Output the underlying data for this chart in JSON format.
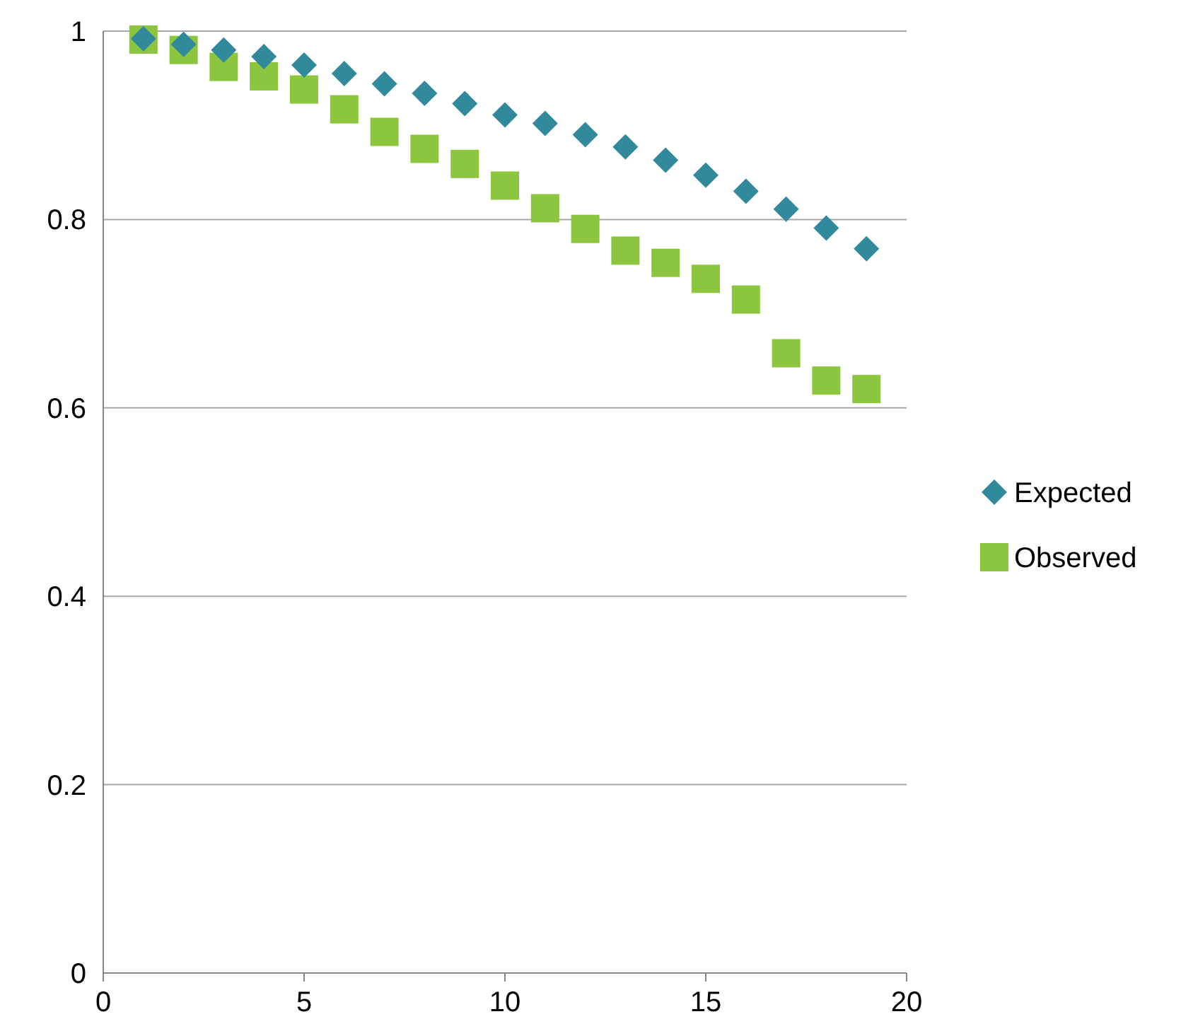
{
  "chart_data": {
    "type": "scatter",
    "x": [
      1,
      2,
      3,
      4,
      5,
      6,
      7,
      8,
      9,
      10,
      11,
      12,
      13,
      14,
      15,
      16,
      17,
      18,
      19
    ],
    "series": [
      {
        "name": "Expected",
        "color": "#31899c",
        "marker": "diamond",
        "values": [
          0.992,
          0.986,
          0.98,
          0.973,
          0.964,
          0.955,
          0.944,
          0.934,
          0.923,
          0.911,
          0.902,
          0.89,
          0.877,
          0.863,
          0.847,
          0.83,
          0.811,
          0.791,
          0.769
        ]
      },
      {
        "name": "Observed",
        "color": "#8cc63f",
        "marker": "square",
        "values": [
          0.991,
          0.98,
          0.962,
          0.952,
          0.938,
          0.917,
          0.893,
          0.875,
          0.859,
          0.836,
          0.812,
          0.79,
          0.767,
          0.754,
          0.737,
          0.715,
          0.658,
          0.629,
          0.62
        ]
      }
    ],
    "xlim": [
      0,
      20
    ],
    "xticks": [
      0,
      5,
      10,
      15,
      20
    ],
    "ylim": [
      0,
      1
    ],
    "yticks": [
      0,
      0.2,
      0.4,
      0.6,
      0.8,
      1
    ],
    "grid": "y",
    "legend": "right"
  }
}
